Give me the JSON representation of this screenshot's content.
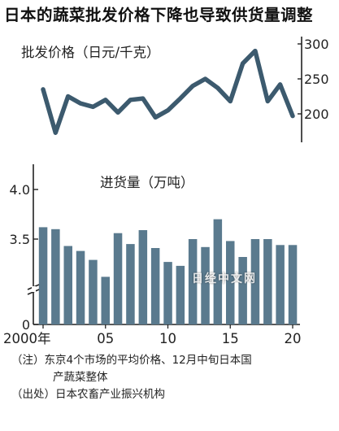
{
  "title": "日本的蔬菜批发价格下降也导致供货量调整",
  "watermark": "日经中文网",
  "notes": {
    "line1": "（注）东京4个市场的平均价格、12月中旬日本国",
    "line2": "产蔬菜整体",
    "source": "（出处）日本农畜产业振兴机构"
  },
  "colors": {
    "line": "#3c5a6e",
    "bar": "#5a7a8e",
    "axis": "#222222"
  },
  "chart_data": [
    {
      "type": "line",
      "ylabel": "批发价格（日元/千克）",
      "yticks": [
        "300",
        "250",
        "200"
      ],
      "ylim": [
        170,
        310
      ],
      "x": [
        2000,
        2001,
        2002,
        2003,
        2004,
        2005,
        2006,
        2007,
        2008,
        2009,
        2010,
        2011,
        2012,
        2013,
        2014,
        2015,
        2016,
        2017,
        2018,
        2019,
        2020
      ],
      "values": [
        235,
        173,
        225,
        215,
        210,
        220,
        202,
        220,
        222,
        195,
        205,
        222,
        240,
        250,
        237,
        218,
        272,
        290,
        218,
        242,
        197
      ]
    },
    {
      "type": "bar",
      "ylabel": "进货量（万吨）",
      "yticks": [
        "4.0",
        "3.5",
        "0"
      ],
      "xticks": [
        "2000年",
        "05",
        "10",
        "15",
        "20"
      ],
      "x": [
        2000,
        2001,
        2002,
        2003,
        2004,
        2005,
        2006,
        2007,
        2008,
        2009,
        2010,
        2011,
        2012,
        2013,
        2014,
        2015,
        2016,
        2017,
        2018,
        2019,
        2020
      ],
      "values": [
        3.62,
        3.6,
        3.43,
        3.38,
        3.29,
        3.12,
        3.56,
        3.45,
        3.59,
        3.41,
        3.27,
        3.23,
        3.5,
        3.42,
        3.7,
        3.48,
        3.32,
        3.5,
        3.5,
        3.44,
        3.44
      ]
    }
  ]
}
